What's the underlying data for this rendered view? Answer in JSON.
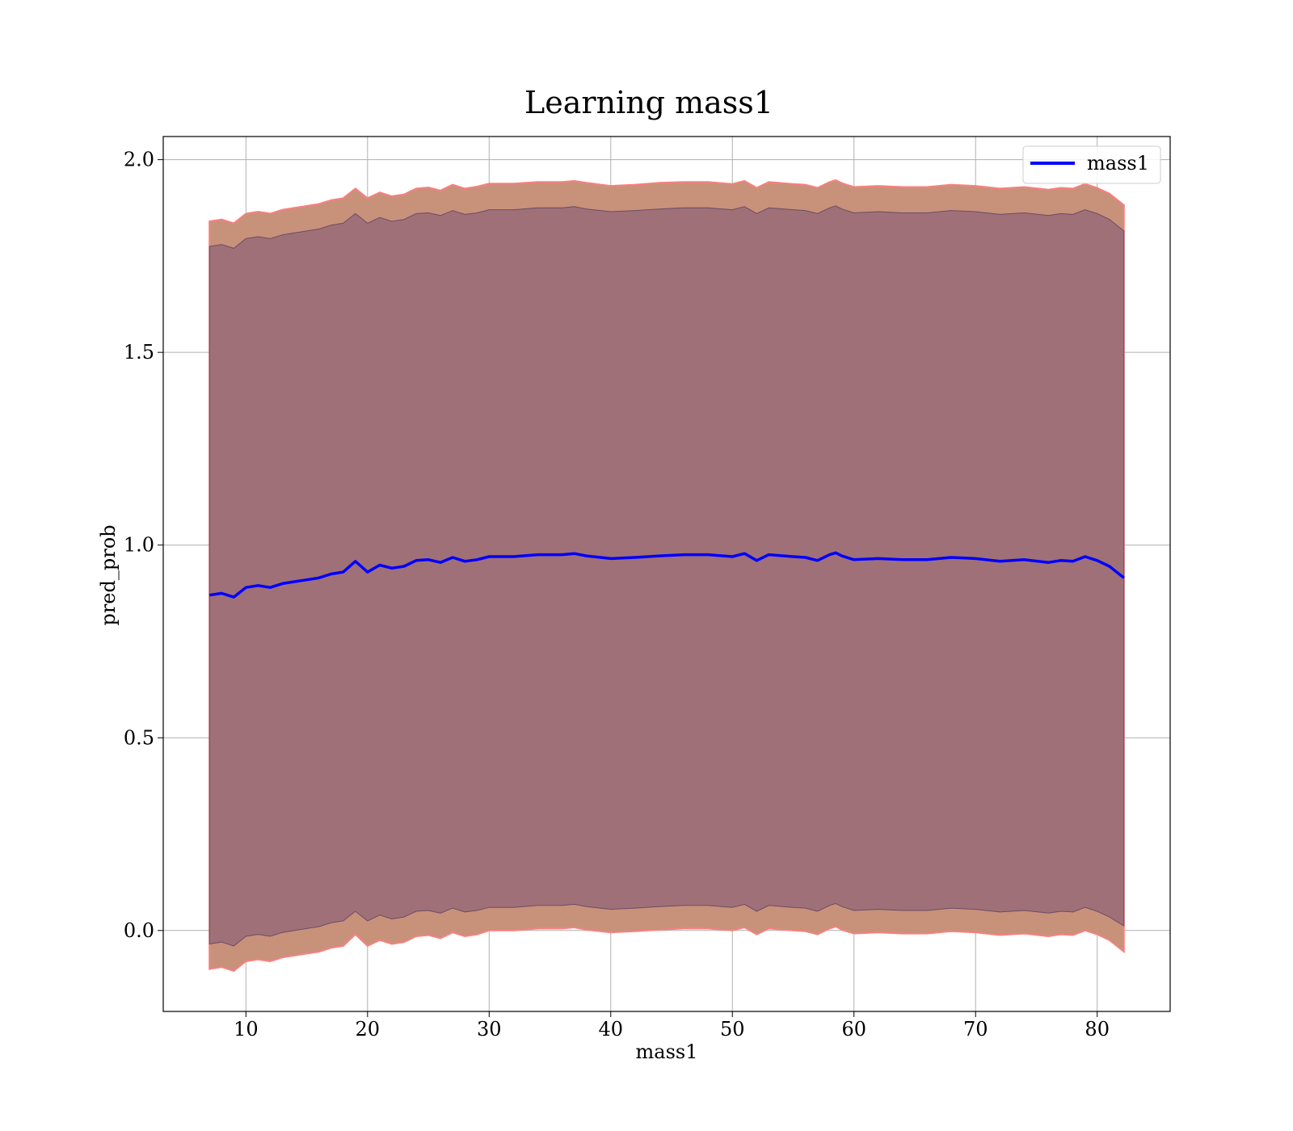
{
  "chart_data": {
    "type": "line",
    "title": "Learning mass1",
    "xlabel": "mass1",
    "ylabel": "pred_prob",
    "xlim": [
      3.2,
      86
    ],
    "ylim": [
      -0.21,
      2.06
    ],
    "xticks": [
      10,
      20,
      30,
      40,
      50,
      60,
      70,
      80
    ],
    "xtick_labels": [
      "10",
      "20",
      "30",
      "40",
      "50",
      "60",
      "70",
      "80"
    ],
    "yticks": [
      0.0,
      0.5,
      1.0,
      1.5,
      2.0
    ],
    "ytick_labels": [
      "0.0",
      "0.5",
      "1.0",
      "1.5",
      "2.0"
    ],
    "grid": true,
    "legend": {
      "position": "top-right",
      "entries": [
        "mass1"
      ]
    },
    "colors": {
      "line": "#0000ff",
      "outer_band": "#f88080",
      "inner_band": "#6b4c66",
      "outer_fill": "#c8917a",
      "inner_fill": "#a07078"
    },
    "series": [
      {
        "name": "mass1",
        "x": [
          7,
          8,
          9,
          10,
          11,
          12,
          13,
          14,
          15,
          16,
          17,
          18,
          19,
          20,
          21,
          22,
          23,
          24,
          25,
          26,
          27,
          28,
          29,
          30,
          32,
          34,
          36,
          37,
          38,
          40,
          42,
          44,
          46,
          48,
          50,
          51,
          52,
          53,
          55,
          56,
          57,
          58,
          58.5,
          59,
          60,
          62,
          64,
          66,
          68,
          70,
          72,
          74,
          76,
          77,
          78,
          79,
          80,
          81,
          82.2
        ],
        "y": [
          0.87,
          0.875,
          0.865,
          0.89,
          0.895,
          0.89,
          0.9,
          0.905,
          0.91,
          0.915,
          0.925,
          0.93,
          0.958,
          0.93,
          0.948,
          0.94,
          0.945,
          0.96,
          0.962,
          0.955,
          0.968,
          0.958,
          0.962,
          0.97,
          0.97,
          0.975,
          0.975,
          0.978,
          0.972,
          0.965,
          0.968,
          0.972,
          0.975,
          0.975,
          0.97,
          0.978,
          0.96,
          0.975,
          0.97,
          0.968,
          0.96,
          0.975,
          0.98,
          0.972,
          0.962,
          0.965,
          0.962,
          0.962,
          0.968,
          0.965,
          0.958,
          0.962,
          0.955,
          0.96,
          0.958,
          0.97,
          0.96,
          0.945,
          0.915
        ]
      }
    ],
    "bands": {
      "x": [
        7,
        8,
        9,
        10,
        11,
        12,
        13,
        14,
        15,
        16,
        17,
        18,
        19,
        20,
        21,
        22,
        23,
        24,
        25,
        26,
        27,
        28,
        29,
        30,
        32,
        34,
        36,
        37,
        38,
        40,
        42,
        44,
        46,
        48,
        50,
        51,
        52,
        53,
        55,
        56,
        57,
        58,
        58.5,
        59,
        60,
        62,
        64,
        66,
        68,
        70,
        72,
        74,
        76,
        77,
        78,
        79,
        80,
        81,
        82.2
      ],
      "outer_upper": [
        1.84,
        1.845,
        1.835,
        1.86,
        1.865,
        1.86,
        1.87,
        1.875,
        1.88,
        1.885,
        1.895,
        1.9,
        1.925,
        1.9,
        1.915,
        1.905,
        1.91,
        1.925,
        1.928,
        1.92,
        1.935,
        1.925,
        1.93,
        1.938,
        1.938,
        1.942,
        1.942,
        1.945,
        1.94,
        1.932,
        1.935,
        1.94,
        1.942,
        1.942,
        1.937,
        1.945,
        1.927,
        1.942,
        1.937,
        1.935,
        1.927,
        1.942,
        1.947,
        1.939,
        1.929,
        1.932,
        1.929,
        1.929,
        1.935,
        1.932,
        1.925,
        1.929,
        1.922,
        1.927,
        1.925,
        1.937,
        1.927,
        1.912,
        1.882
      ],
      "inner_upper": [
        1.775,
        1.78,
        1.77,
        1.795,
        1.8,
        1.795,
        1.805,
        1.81,
        1.815,
        1.82,
        1.83,
        1.835,
        1.86,
        1.835,
        1.85,
        1.84,
        1.845,
        1.86,
        1.862,
        1.855,
        1.868,
        1.858,
        1.862,
        1.87,
        1.87,
        1.875,
        1.875,
        1.878,
        1.872,
        1.865,
        1.868,
        1.872,
        1.875,
        1.875,
        1.87,
        1.878,
        1.86,
        1.875,
        1.87,
        1.868,
        1.86,
        1.875,
        1.88,
        1.872,
        1.862,
        1.865,
        1.862,
        1.862,
        1.868,
        1.865,
        1.858,
        1.862,
        1.855,
        1.86,
        1.858,
        1.87,
        1.86,
        1.845,
        1.815
      ],
      "inner_lower": [
        -0.035,
        -0.03,
        -0.04,
        -0.015,
        -0.01,
        -0.015,
        -0.005,
        0.0,
        0.005,
        0.01,
        0.02,
        0.025,
        0.05,
        0.025,
        0.04,
        0.03,
        0.035,
        0.05,
        0.052,
        0.045,
        0.058,
        0.048,
        0.052,
        0.06,
        0.06,
        0.065,
        0.065,
        0.068,
        0.062,
        0.055,
        0.058,
        0.062,
        0.065,
        0.065,
        0.06,
        0.068,
        0.05,
        0.065,
        0.06,
        0.058,
        0.05,
        0.065,
        0.07,
        0.062,
        0.052,
        0.055,
        0.052,
        0.052,
        0.058,
        0.055,
        0.048,
        0.052,
        0.045,
        0.05,
        0.048,
        0.06,
        0.05,
        0.035,
        0.012
      ],
      "outer_lower": [
        -0.1,
        -0.095,
        -0.105,
        -0.08,
        -0.075,
        -0.08,
        -0.07,
        -0.065,
        -0.06,
        -0.055,
        -0.045,
        -0.04,
        -0.01,
        -0.04,
        -0.025,
        -0.035,
        -0.03,
        -0.015,
        -0.012,
        -0.02,
        -0.005,
        -0.015,
        -0.01,
        0.0,
        0.0,
        0.005,
        0.005,
        0.008,
        0.002,
        -0.005,
        -0.002,
        0.002,
        0.005,
        0.005,
        0.0,
        0.008,
        -0.01,
        0.005,
        0.0,
        -0.002,
        -0.01,
        0.005,
        0.01,
        0.002,
        -0.008,
        -0.005,
        -0.008,
        -0.008,
        -0.002,
        -0.005,
        -0.012,
        -0.008,
        -0.015,
        -0.01,
        -0.012,
        0.0,
        -0.01,
        -0.025,
        -0.055
      ]
    }
  }
}
